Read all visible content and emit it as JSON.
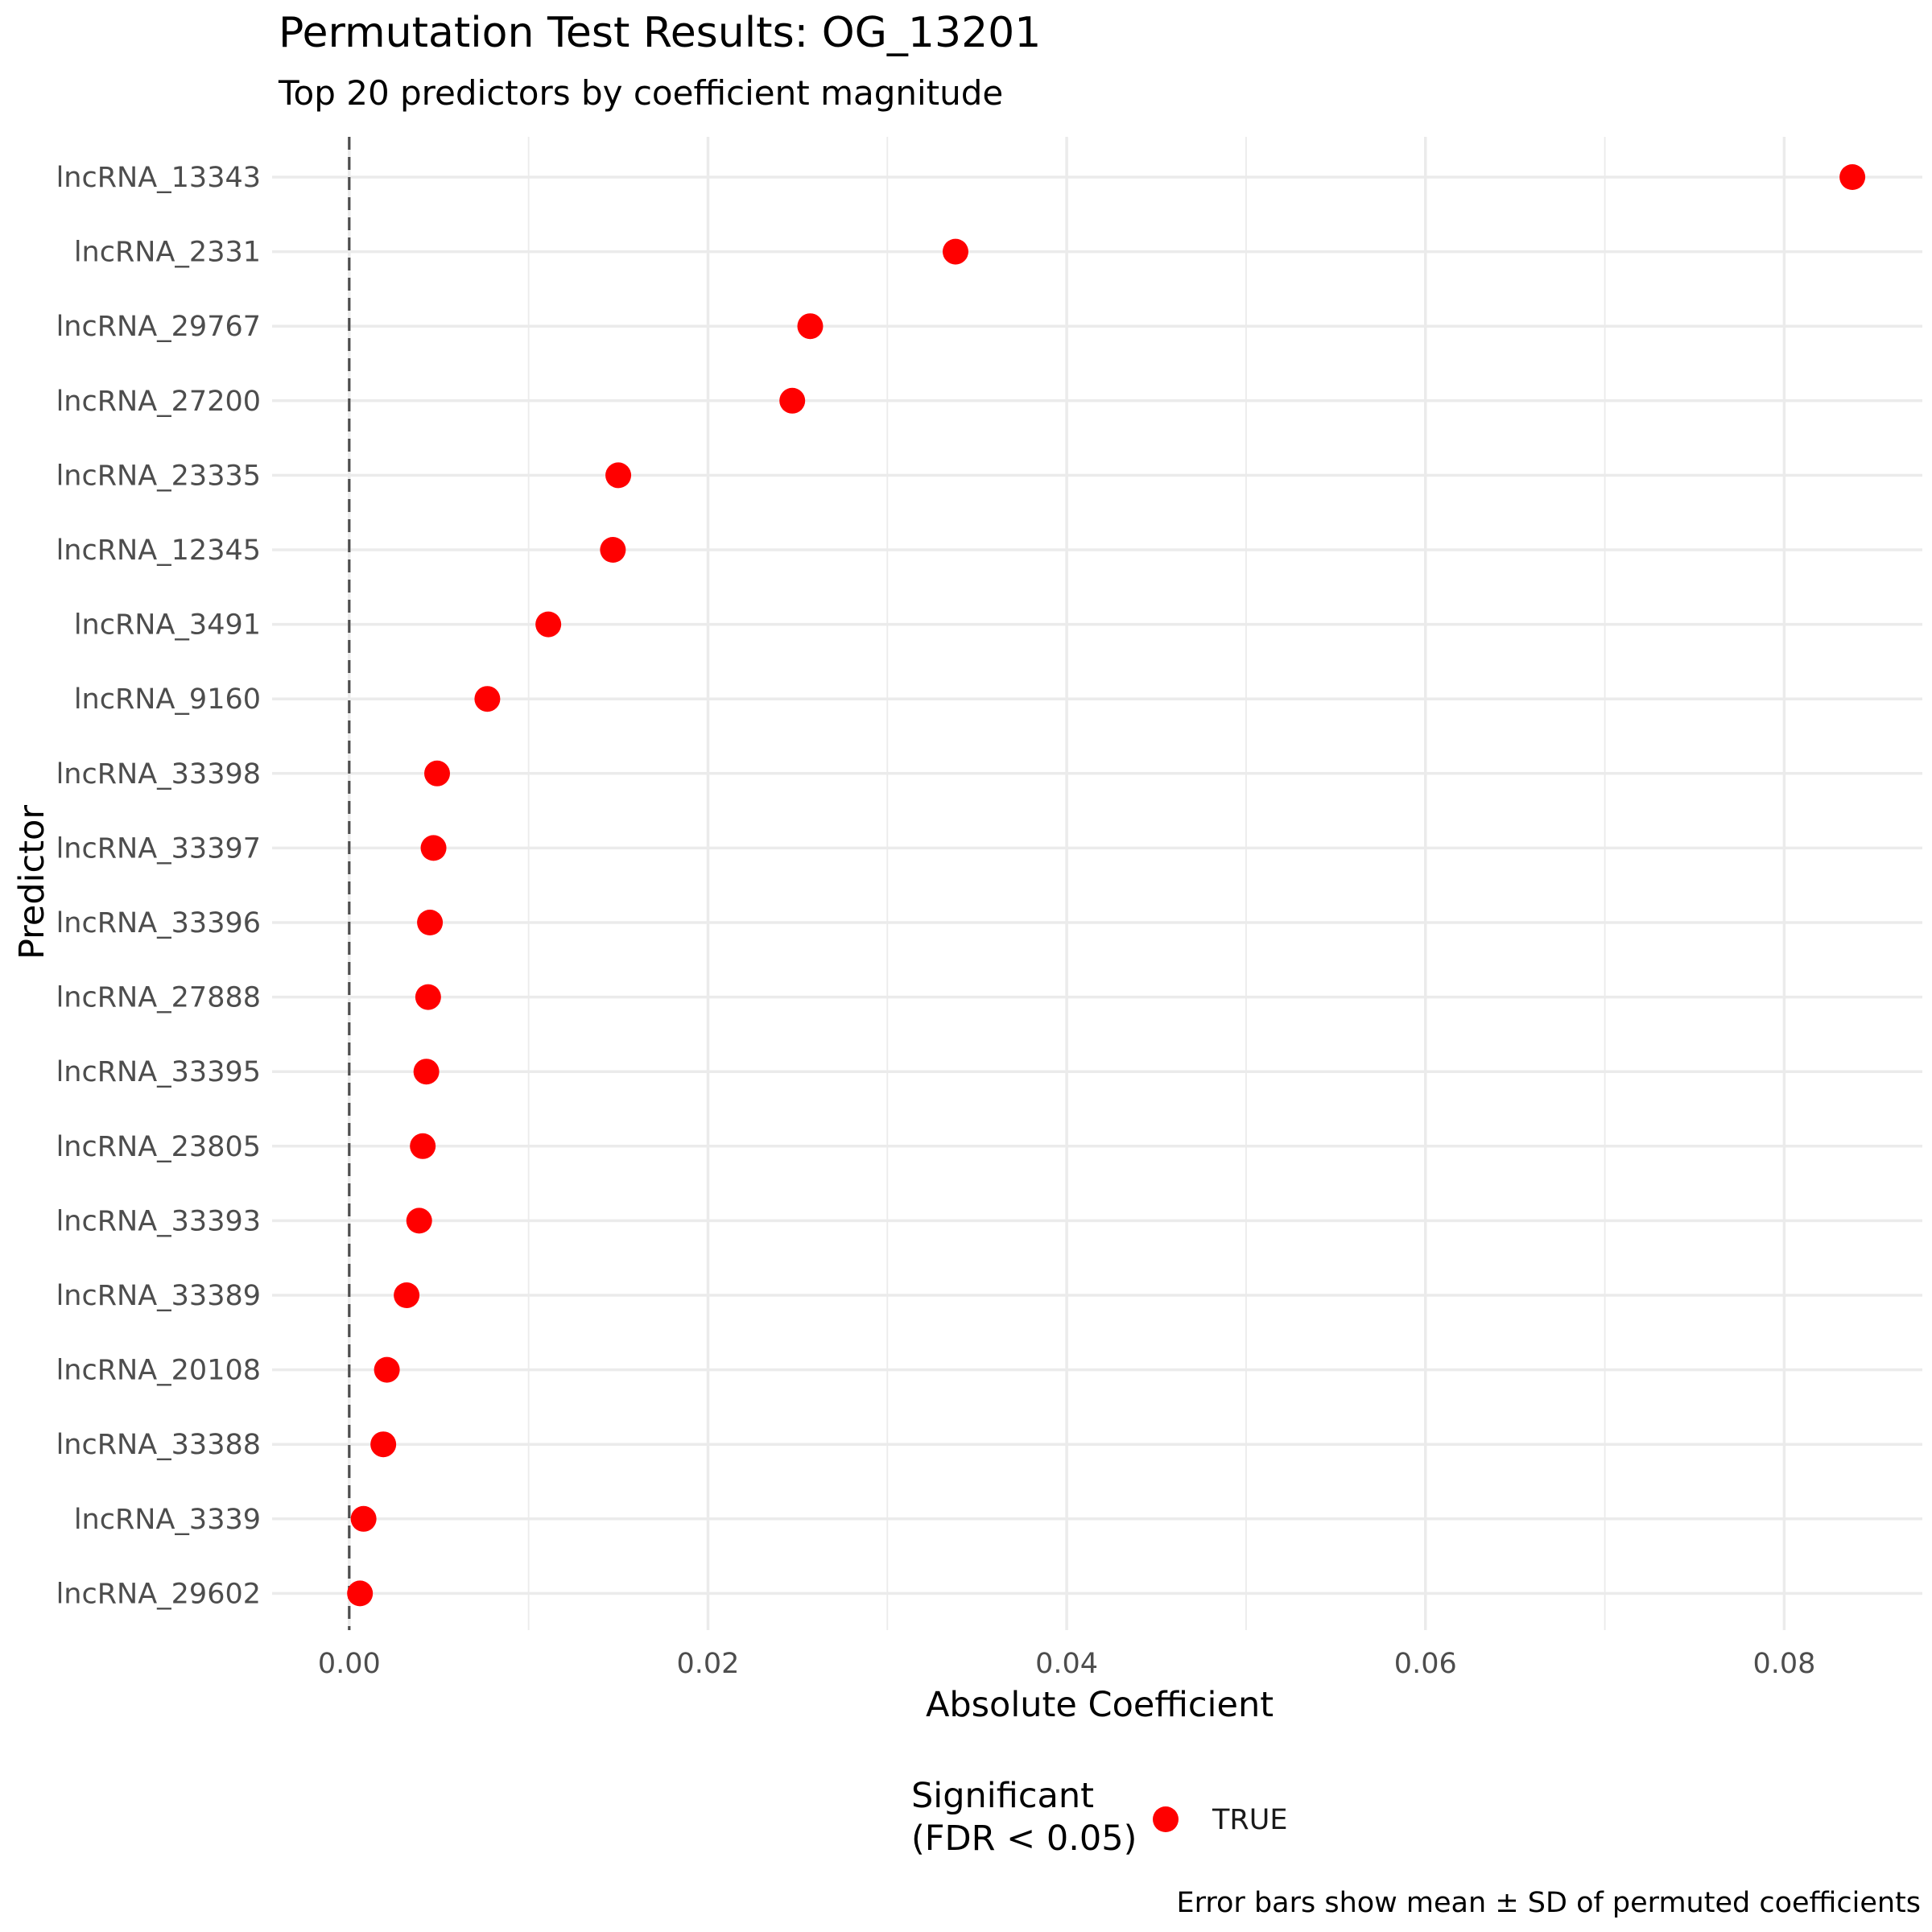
{
  "chart_data": {
    "type": "scatter",
    "title": "Permutation Test Results: OG_13201",
    "subtitle": "Top 20 predictors by coefficient magnitude",
    "xlabel": "Absolute Coefficient",
    "ylabel": "Predictor",
    "xlim": [
      -0.0043,
      0.0877
    ],
    "x_ticks": [
      0.0,
      0.02,
      0.04,
      0.06,
      0.08
    ],
    "x_tick_labels": [
      "0.00",
      "0.02",
      "0.04",
      "0.06",
      "0.08"
    ],
    "reference_line": 0.0,
    "grid": true,
    "categories": [
      "lncRNA_13343",
      "lncRNA_2331",
      "lncRNA_29767",
      "lncRNA_27200",
      "lncRNA_23335",
      "lncRNA_12345",
      "lncRNA_3491",
      "lncRNA_9160",
      "lncRNA_33398",
      "lncRNA_33397",
      "lncRNA_33396",
      "lncRNA_27888",
      "lncRNA_33395",
      "lncRNA_23805",
      "lncRNA_33393",
      "lncRNA_33389",
      "lncRNA_20108",
      "lncRNA_33388",
      "lncRNA_3339",
      "lncRNA_29602"
    ],
    "values": [
      0.0838,
      0.0338,
      0.0257,
      0.0247,
      0.015,
      0.0147,
      0.0111,
      0.0077,
      0.0049,
      0.0047,
      0.0045,
      0.0044,
      0.0043,
      0.0041,
      0.0039,
      0.0032,
      0.0021,
      0.0019,
      0.0008,
      0.0006
    ],
    "significant": [
      true,
      true,
      true,
      true,
      true,
      true,
      true,
      true,
      true,
      true,
      true,
      true,
      true,
      true,
      true,
      true,
      true,
      true,
      true,
      true
    ],
    "point_color": "#ff0000",
    "legend": {
      "title_line1": "Significant",
      "title_line2": "(FDR < 0.05)",
      "label": "TRUE",
      "placement": "bottom"
    },
    "caption": "Error bars show mean ± SD of permuted coefficients"
  }
}
